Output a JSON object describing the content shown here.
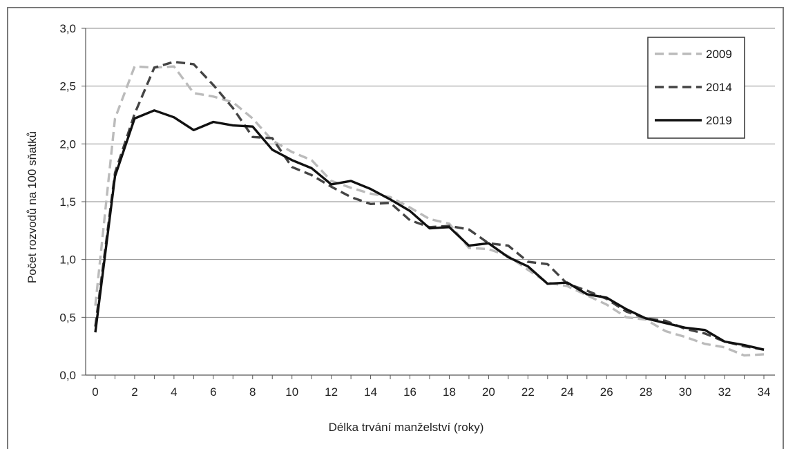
{
  "chart_data": {
    "type": "line",
    "title": "",
    "xlabel": "Délka trvání manželství (roky)",
    "ylabel": "Počet rozvodů na 100 sňatků",
    "xlim": [
      0,
      34
    ],
    "ylim": [
      0,
      3
    ],
    "x_ticks": [
      "0",
      "2",
      "4",
      "6",
      "8",
      "10",
      "12",
      "14",
      "16",
      "18",
      "20",
      "22",
      "24",
      "26",
      "28",
      "30",
      "32",
      "34"
    ],
    "y_ticks": [
      "0,0",
      "0,5",
      "1,0",
      "1,5",
      "2,0",
      "2,5",
      "3,0"
    ],
    "grid": "horizontal",
    "legend_position": "top-right",
    "x": [
      0,
      1,
      2,
      3,
      4,
      5,
      6,
      7,
      8,
      9,
      10,
      11,
      12,
      13,
      14,
      15,
      16,
      17,
      18,
      19,
      20,
      21,
      22,
      23,
      24,
      25,
      26,
      27,
      28,
      29,
      30,
      31,
      32,
      33,
      34
    ],
    "series": [
      {
        "name": "2009",
        "color": "#bbbbbb",
        "style": "dashed",
        "values": [
          0.6,
          2.22,
          2.67,
          2.66,
          2.67,
          2.44,
          2.41,
          2.36,
          2.22,
          2.03,
          1.93,
          1.86,
          1.68,
          1.62,
          1.57,
          1.54,
          1.45,
          1.35,
          1.31,
          1.1,
          1.09,
          1.03,
          0.91,
          0.8,
          0.77,
          0.69,
          0.61,
          0.5,
          0.48,
          0.38,
          0.33,
          0.27,
          0.24,
          0.17,
          0.18
        ]
      },
      {
        "name": "2014",
        "color": "#444444",
        "style": "dashed",
        "values": [
          0.42,
          1.75,
          2.26,
          2.66,
          2.71,
          2.69,
          2.51,
          2.31,
          2.06,
          2.05,
          1.8,
          1.73,
          1.63,
          1.54,
          1.48,
          1.49,
          1.34,
          1.28,
          1.29,
          1.26,
          1.14,
          1.12,
          0.98,
          0.96,
          0.79,
          0.73,
          0.66,
          0.55,
          0.49,
          0.47,
          0.4,
          0.36,
          0.29,
          0.25,
          0.22
        ]
      },
      {
        "name": "2019",
        "color": "#111111",
        "style": "solid",
        "values": [
          0.37,
          1.72,
          2.22,
          2.29,
          2.23,
          2.12,
          2.19,
          2.16,
          2.15,
          1.95,
          1.86,
          1.79,
          1.65,
          1.68,
          1.61,
          1.52,
          1.42,
          1.27,
          1.28,
          1.12,
          1.14,
          1.02,
          0.94,
          0.79,
          0.8,
          0.7,
          0.67,
          0.57,
          0.49,
          0.45,
          0.41,
          0.39,
          0.29,
          0.26,
          0.22
        ]
      }
    ]
  }
}
